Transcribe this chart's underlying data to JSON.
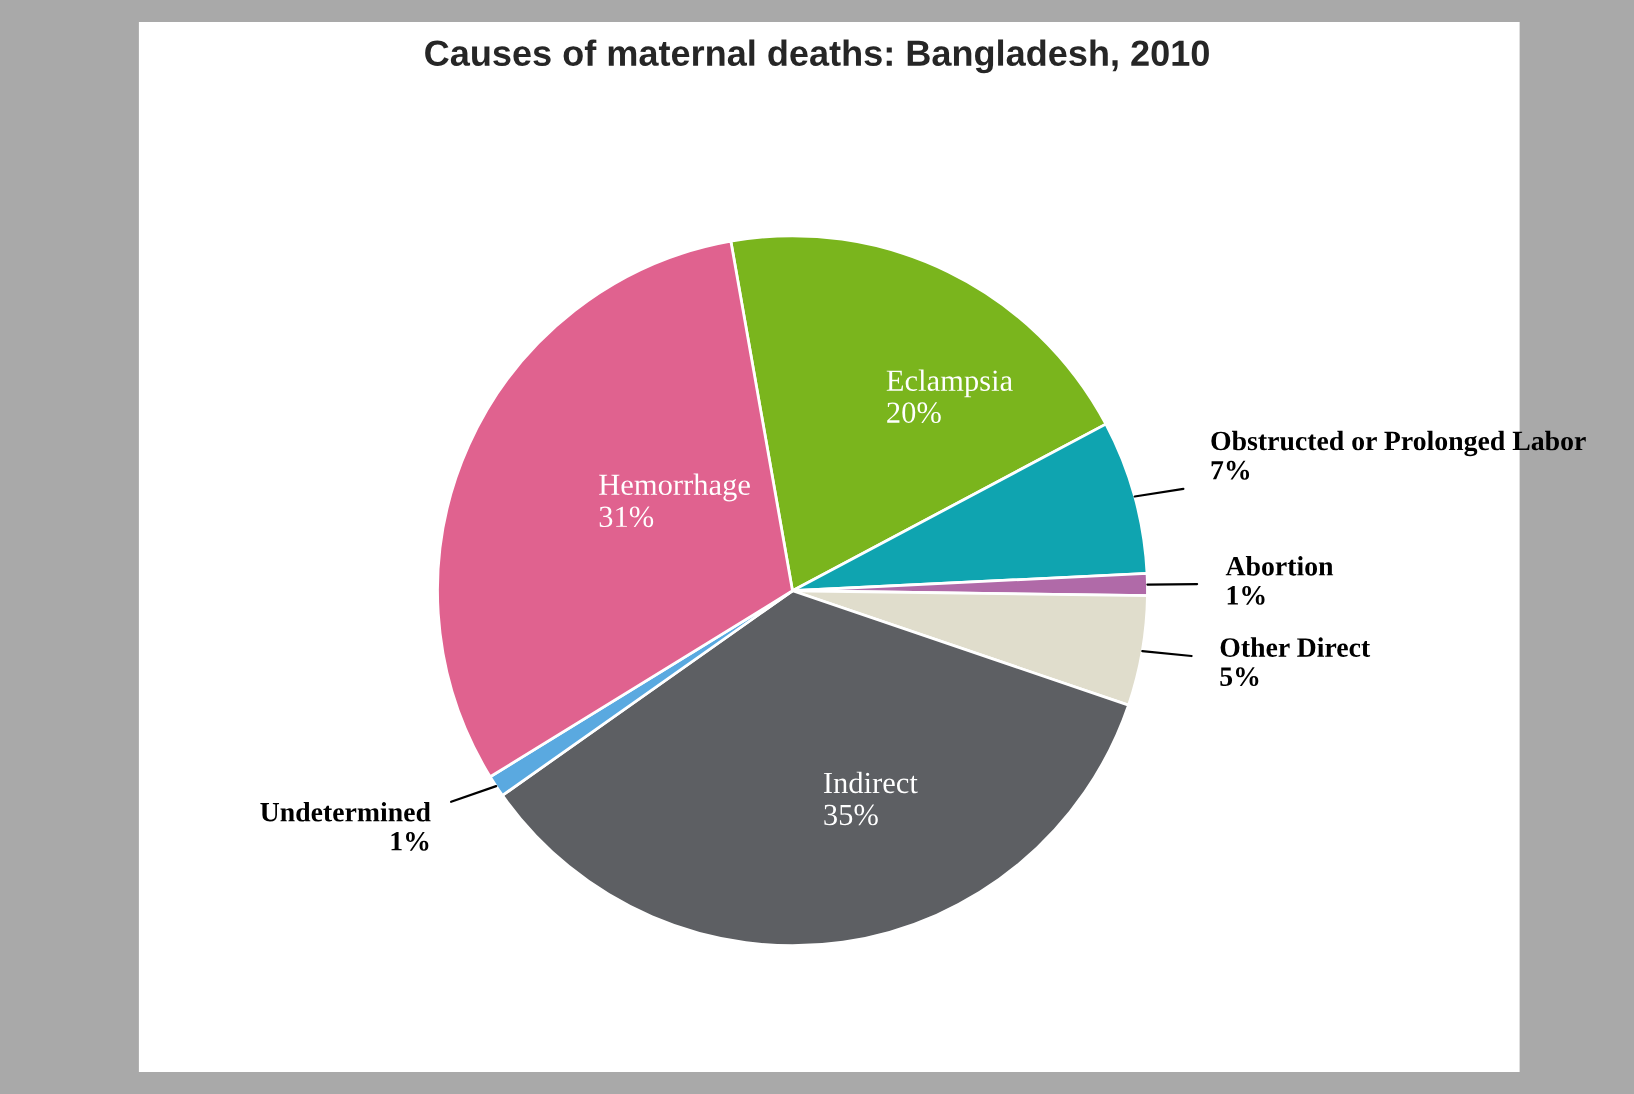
{
  "chart_data": {
    "type": "pie",
    "title": "Causes of maternal deaths: Bangladesh, 2010",
    "categories": [
      "Eclampsia",
      "Obstructed or Prolonged Labor",
      "Abortion",
      "Other Direct",
      "Indirect",
      "Undetermined",
      "Hemorrhage"
    ],
    "values": [
      20,
      7,
      1,
      5,
      35,
      1,
      31
    ],
    "value_labels": [
      "20%",
      "7%",
      "1%",
      "5%",
      "35%",
      "1%",
      "31%"
    ],
    "colors": [
      "#7ab51d",
      "#0fa4b0",
      "#b06aa8",
      "#e0ddcc",
      "#5d5f63",
      "#5aa9e0",
      "#e0628f"
    ],
    "legend": false
  }
}
